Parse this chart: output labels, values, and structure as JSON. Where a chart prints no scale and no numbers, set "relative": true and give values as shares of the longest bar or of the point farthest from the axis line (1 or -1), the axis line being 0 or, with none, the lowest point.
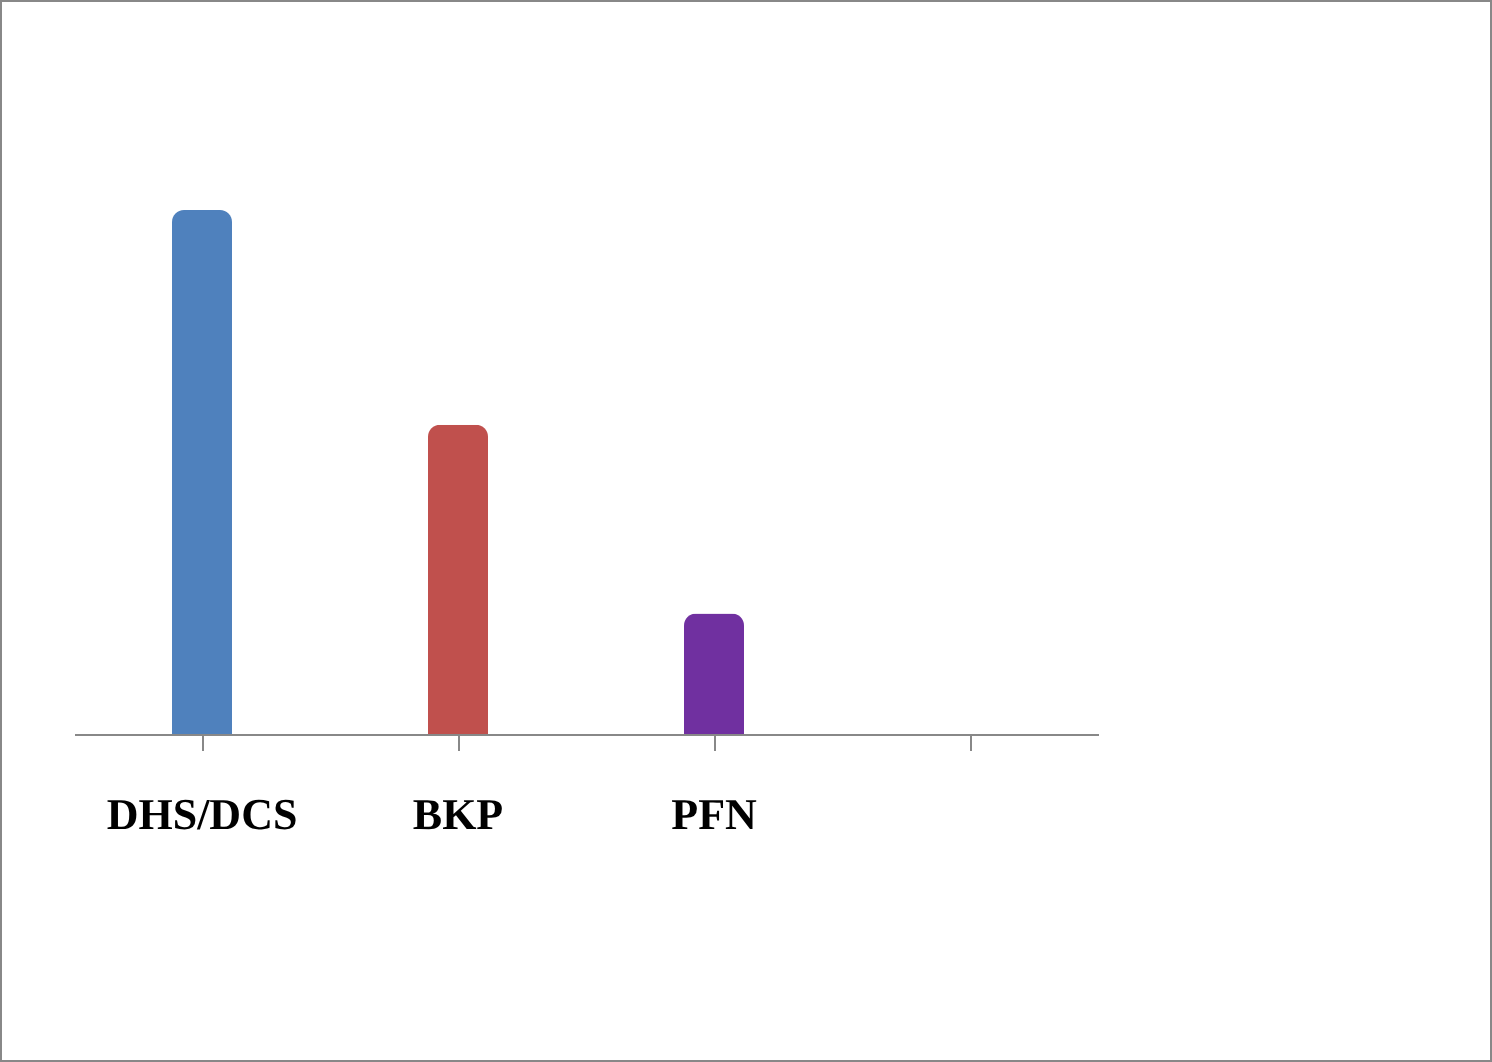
{
  "chart_data": {
    "type": "bar",
    "relative": true,
    "categories": [
      "DHS/DCS",
      "BKP",
      "PFN",
      null
    ],
    "values": [
      1,
      0.59,
      0.23,
      null
    ],
    "colors": [
      "#4f81bd",
      "#c0504d",
      "#7030a0",
      "#000000"
    ],
    "legend": false
  }
}
